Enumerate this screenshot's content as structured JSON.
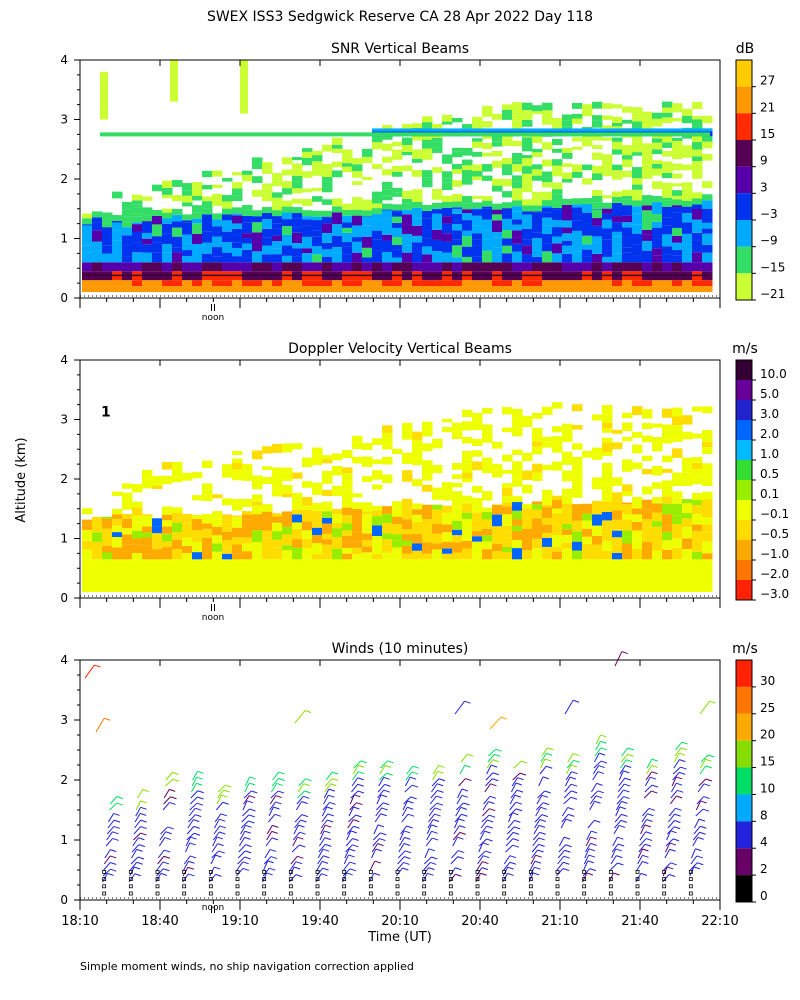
{
  "figure_title": "SWEX ISS3 Sedgwick Reserve CA  28 Apr 2022 Day 118",
  "y_axis_label": "Altitude (km)",
  "x_axis_label": "Time (UT)",
  "noon_label": "noon",
  "footnote": "Simple moment winds, no ship navigation correction applied",
  "chart_data": [
    {
      "type": "heatmap",
      "title": "SNR Vertical Beams",
      "units": "dB",
      "ylim": [
        0,
        4
      ],
      "yticks": [
        "0",
        "1",
        "2",
        "3",
        "4"
      ],
      "xlim": [
        "18:10",
        "22:10"
      ],
      "colorbar": {
        "labels": [
          "27",
          "21",
          "15",
          "9",
          "3",
          "−3",
          "−9",
          "−15",
          "−21"
        ],
        "colors": [
          "#ffcc00",
          "#ff9900",
          "#ff2a00",
          "#550055",
          "#5500aa",
          "#0033ee",
          "#00aaff",
          "#33dd66",
          "#ccff33"
        ]
      },
      "layers": [
        {
          "top_km": 4.0,
          "base_km": 3.0,
          "value_db": -21
        },
        {
          "top_km": 2.9,
          "base_km": 2.6,
          "value_db": -6
        },
        {
          "top_km": 2.4,
          "base_km": 1.3,
          "value_db": -15
        },
        {
          "top_km": 1.3,
          "base_km": 0.7,
          "value_db": -4
        },
        {
          "top_km": 0.6,
          "base_km": 0.3,
          "value_db": 10
        },
        {
          "top_km": 0.3,
          "base_km": 0.1,
          "value_db": 20
        }
      ]
    },
    {
      "type": "heatmap",
      "title": "Doppler Velocity Vertical Beams",
      "units": "m/s",
      "ylim": [
        0,
        4
      ],
      "yticks": [
        "0",
        "1",
        "2",
        "3",
        "4"
      ],
      "xlim": [
        "18:10",
        "22:10"
      ],
      "colorbar": {
        "labels": [
          "10.0",
          "5.0",
          "3.0",
          "2.0",
          "1.0",
          "0.5",
          "0.1",
          "−0.1",
          "−0.5",
          "−1.0",
          "−2.0",
          "−3.0"
        ],
        "colors": [
          "#330033",
          "#660099",
          "#2222cc",
          "#0066ff",
          "#00bbff",
          "#33dd33",
          "#99ee00",
          "#eeff00",
          "#ffdd00",
          "#ffaa00",
          "#ff7700",
          "#ff2200"
        ]
      },
      "layers": [
        {
          "top_km": 3.2,
          "base_km": 1.8,
          "value_ms": -0.1
        },
        {
          "top_km": 1.8,
          "base_km": 0.7,
          "value_ms": -0.5
        },
        {
          "top_km": 0.7,
          "base_km": 0.1,
          "value_ms": -0.1
        }
      ]
    },
    {
      "type": "scatter",
      "title": "Winds (10 minutes)",
      "units": "m/s",
      "ylim": [
        0,
        4
      ],
      "yticks": [
        "0",
        "1",
        "2",
        "3",
        "4"
      ],
      "xticks": [
        "18:10",
        "18:40",
        "19:10",
        "19:40",
        "20:10",
        "20:40",
        "21:10",
        "21:40",
        "22:10"
      ],
      "colorbar": {
        "labels": [
          "30",
          "25",
          "20",
          "15",
          "10",
          "8",
          "4",
          "2",
          "0"
        ],
        "colors": [
          "#ff2200",
          "#ff7700",
          "#ffaa00",
          "#88dd00",
          "#00dd66",
          "#00aaff",
          "#2222dd",
          "#660066",
          "#000000"
        ]
      },
      "profile_times": [
        "18:20",
        "18:30",
        "18:40",
        "18:50",
        "19:00",
        "19:10",
        "19:20",
        "19:30",
        "19:40",
        "19:50",
        "20:00",
        "20:10",
        "20:20",
        "20:30",
        "20:40",
        "20:50",
        "21:00",
        "21:10",
        "21:20",
        "21:30",
        "21:40",
        "21:50",
        "22:00"
      ],
      "profile_top_km": 2.5,
      "dominant_speed_ms": 6
    }
  ]
}
